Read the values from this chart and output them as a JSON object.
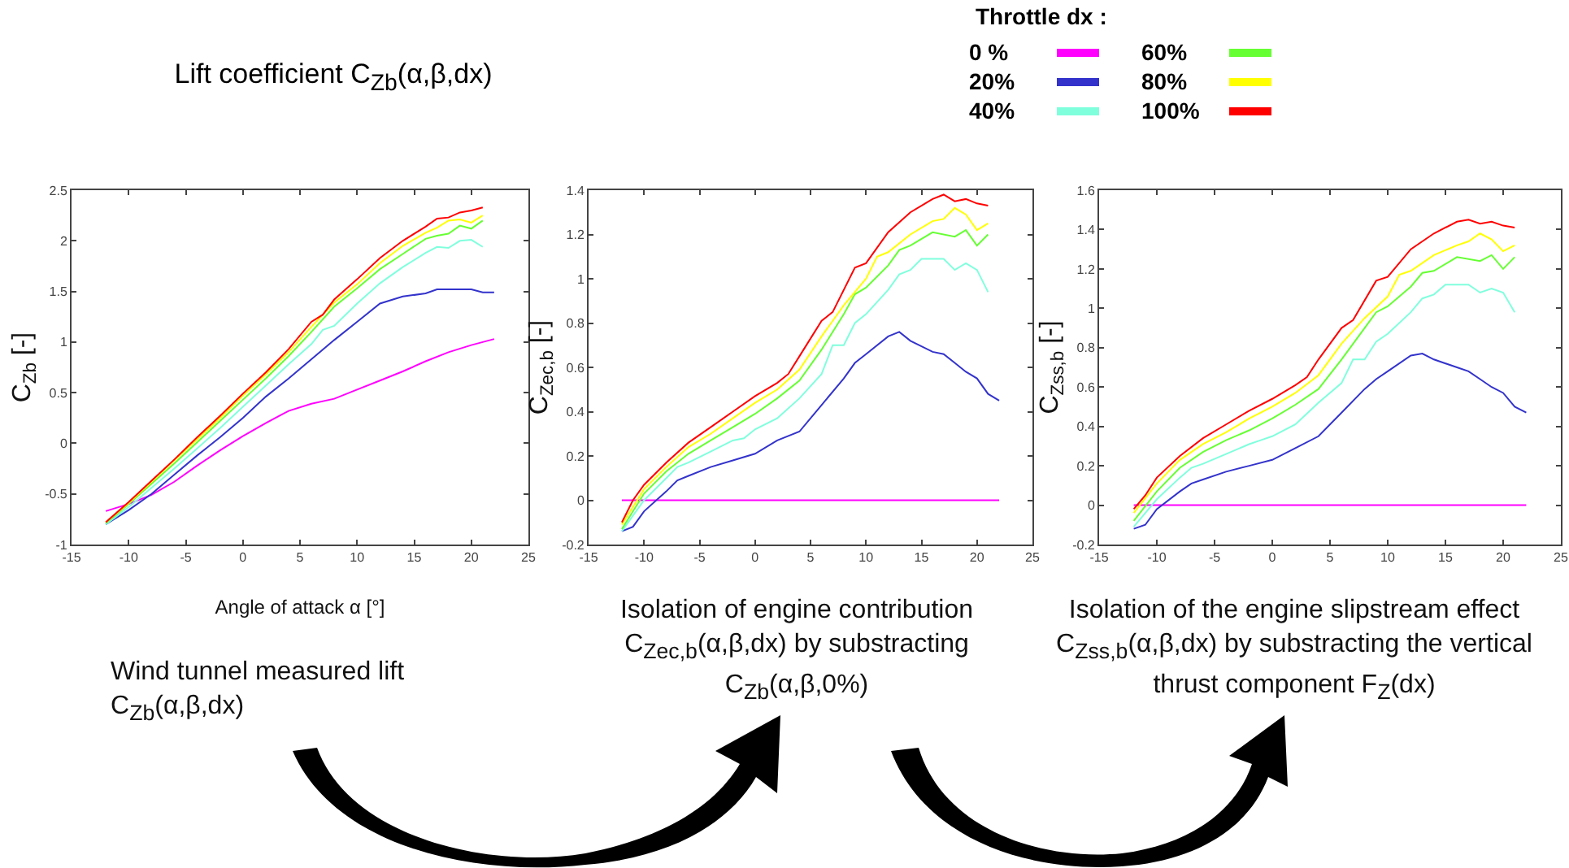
{
  "chart_data": [
    {
      "type": "line",
      "title": "Lift coefficient C$_{Zb}$(α,β,dx)",
      "xlabel": "Angle of attack α [°]",
      "ylabel": "C$_{Zb}$ [-]",
      "legend_title": "Throttle dx :",
      "legend": "top right",
      "xlim": [
        -15,
        25
      ],
      "xticks": [
        -15,
        -10,
        -5,
        0,
        5,
        10,
        15,
        20,
        25
      ],
      "ylim": [
        -1,
        2.5
      ],
      "yticks": [
        -1,
        -0.5,
        0,
        0.5,
        1,
        1.5,
        2,
        2.5
      ],
      "annotations": [
        "Wind tunnel measured lift C$_{Zb}$(α,β,dx)"
      ],
      "series": [
        {
          "name": "0 %",
          "color": "#ff00ff",
          "x": [
            -12,
            -10,
            -8,
            -6,
            -4,
            -2,
            0,
            2,
            4,
            6,
            8,
            10,
            12,
            14,
            16,
            18,
            20,
            22
          ],
          "values": [
            -0.67,
            -0.6,
            -0.51,
            -0.38,
            -0.22,
            -0.07,
            0.07,
            0.2,
            0.32,
            0.39,
            0.44,
            0.53,
            0.62,
            0.71,
            0.81,
            0.9,
            0.97,
            1.03
          ]
        },
        {
          "name": "20%",
          "color": "#3333cc",
          "x": [
            -12,
            -10,
            -8,
            -6,
            -4,
            -2,
            0,
            2,
            4,
            6,
            8,
            10,
            12,
            14,
            16,
            17,
            18,
            20,
            21,
            22
          ],
          "values": [
            -0.8,
            -0.66,
            -0.5,
            -0.31,
            -0.12,
            0.06,
            0.25,
            0.46,
            0.64,
            0.83,
            1.02,
            1.2,
            1.38,
            1.45,
            1.48,
            1.52,
            1.52,
            1.52,
            1.49,
            1.49
          ]
        },
        {
          "name": "40%",
          "color": "#80ffdd",
          "x": [
            -12,
            -10,
            -8,
            -6,
            -4,
            -2,
            0,
            2,
            4,
            6,
            7,
            8,
            10,
            12,
            14,
            16,
            17,
            18,
            19,
            20,
            21
          ],
          "values": [
            -0.8,
            -0.63,
            -0.44,
            -0.25,
            -0.05,
            0.15,
            0.36,
            0.57,
            0.78,
            0.98,
            1.12,
            1.16,
            1.38,
            1.58,
            1.74,
            1.88,
            1.94,
            1.93,
            2.0,
            2.01,
            1.94
          ]
        },
        {
          "name": "60%",
          "color": "#66ff33",
          "x": [
            -12,
            -10,
            -8,
            -6,
            -4,
            -2,
            0,
            2,
            4,
            6,
            8,
            10,
            12,
            14,
            16,
            17,
            18,
            19,
            20,
            21
          ],
          "values": [
            -0.79,
            -0.6,
            -0.4,
            -0.2,
            0.01,
            0.22,
            0.43,
            0.64,
            0.86,
            1.1,
            1.35,
            1.53,
            1.72,
            1.87,
            2.02,
            2.05,
            2.07,
            2.15,
            2.12,
            2.2
          ]
        },
        {
          "name": "80%",
          "color": "#ffff00",
          "x": [
            -12,
            -10,
            -8,
            -6,
            -4,
            -2,
            0,
            2,
            4,
            6,
            8,
            10,
            12,
            14,
            16,
            17,
            18,
            19,
            20,
            21
          ],
          "values": [
            -0.78,
            -0.59,
            -0.38,
            -0.17,
            0.04,
            0.25,
            0.47,
            0.68,
            0.9,
            1.15,
            1.39,
            1.57,
            1.78,
            1.95,
            2.08,
            2.13,
            2.2,
            2.21,
            2.18,
            2.25
          ]
        },
        {
          "name": "100%",
          "color": "#ff0000",
          "x": [
            -12,
            -10,
            -8,
            -6,
            -4,
            -2,
            0,
            2,
            4,
            6,
            7,
            8,
            10,
            12,
            14,
            16,
            17,
            18,
            19,
            20,
            21
          ],
          "values": [
            -0.78,
            -0.58,
            -0.37,
            -0.16,
            0.06,
            0.27,
            0.49,
            0.7,
            0.93,
            1.2,
            1.27,
            1.42,
            1.62,
            1.83,
            2.0,
            2.14,
            2.22,
            2.23,
            2.28,
            2.3,
            2.33
          ]
        }
      ]
    },
    {
      "type": "line",
      "ylabel": "C$_{Zec,b}$ [-]",
      "xlim": [
        -15,
        25
      ],
      "xticks": [
        -15,
        -10,
        -5,
        0,
        5,
        10,
        15,
        20,
        25
      ],
      "ylim": [
        -0.2,
        1.4
      ],
      "yticks": [
        -0.2,
        0,
        0.2,
        0.4,
        0.6,
        0.8,
        1,
        1.2,
        1.4
      ],
      "annotations": [
        "Isolation of engine contribution C$_{Zec,b}$(α,β,dx) by substracting C$_{Zb}$(α,β,0%)"
      ],
      "series": [
        {
          "color": "#ff00ff",
          "x": [
            -12,
            22
          ],
          "values": [
            0,
            0
          ]
        },
        {
          "color": "#3333cc",
          "x": [
            -12,
            -11,
            -10,
            -8,
            -7,
            -6,
            -4,
            -2,
            0,
            2,
            4,
            6,
            8,
            9,
            10,
            12,
            13,
            14,
            16,
            17,
            18,
            19,
            20,
            21,
            22
          ],
          "values": [
            -0.14,
            -0.12,
            -0.05,
            0.04,
            0.09,
            0.11,
            0.15,
            0.18,
            0.21,
            0.27,
            0.31,
            0.43,
            0.55,
            0.62,
            0.66,
            0.74,
            0.76,
            0.72,
            0.67,
            0.66,
            0.62,
            0.58,
            0.55,
            0.48,
            0.45
          ]
        },
        {
          "color": "#80ffdd",
          "x": [
            -12,
            -10,
            -8,
            -7,
            -6,
            -4,
            -2,
            -1,
            0,
            2,
            4,
            6,
            7,
            8,
            9,
            10,
            12,
            13,
            14,
            15,
            17,
            18,
            19,
            20,
            21
          ],
          "values": [
            -0.14,
            0.0,
            0.1,
            0.15,
            0.17,
            0.22,
            0.27,
            0.28,
            0.32,
            0.37,
            0.46,
            0.57,
            0.7,
            0.7,
            0.8,
            0.84,
            0.95,
            1.02,
            1.04,
            1.09,
            1.09,
            1.04,
            1.07,
            1.04,
            0.94
          ]
        },
        {
          "color": "#66ff33",
          "x": [
            -12,
            -10,
            -8,
            -6,
            -4,
            -2,
            0,
            2,
            4,
            6,
            8,
            9,
            10,
            12,
            13,
            14,
            16,
            18,
            19,
            20,
            21
          ],
          "values": [
            -0.13,
            0.03,
            0.13,
            0.21,
            0.27,
            0.33,
            0.39,
            0.46,
            0.54,
            0.68,
            0.84,
            0.93,
            0.96,
            1.06,
            1.13,
            1.15,
            1.21,
            1.19,
            1.22,
            1.15,
            1.2
          ]
        },
        {
          "color": "#ffff00",
          "x": [
            -12,
            -10,
            -8,
            -6,
            -4,
            -2,
            0,
            2,
            4,
            6,
            8,
            10,
            11,
            12,
            14,
            16,
            17,
            18,
            19,
            20,
            21
          ],
          "values": [
            -0.11,
            0.05,
            0.15,
            0.24,
            0.3,
            0.37,
            0.44,
            0.5,
            0.59,
            0.74,
            0.88,
            1.0,
            1.1,
            1.12,
            1.2,
            1.26,
            1.27,
            1.32,
            1.29,
            1.22,
            1.25
          ]
        },
        {
          "color": "#ff0000",
          "x": [
            -12,
            -11,
            -10,
            -8,
            -6,
            -4,
            -2,
            0,
            2,
            3,
            4,
            6,
            7,
            9,
            10,
            12,
            14,
            16,
            17,
            18,
            19,
            20,
            21
          ],
          "values": [
            -0.1,
            0.0,
            0.07,
            0.17,
            0.26,
            0.33,
            0.4,
            0.47,
            0.53,
            0.57,
            0.65,
            0.81,
            0.85,
            1.05,
            1.07,
            1.21,
            1.3,
            1.36,
            1.38,
            1.35,
            1.36,
            1.34,
            1.33
          ]
        }
      ]
    },
    {
      "type": "line",
      "ylabel": "C$_{Zss,b}$ [-]",
      "xlim": [
        -15,
        25
      ],
      "xticks": [
        -15,
        -10,
        -5,
        0,
        5,
        10,
        15,
        20,
        25
      ],
      "ylim": [
        -0.2,
        1.6
      ],
      "yticks": [
        -0.2,
        0,
        0.2,
        0.4,
        0.6,
        0.8,
        1,
        1.2,
        1.4,
        1.6
      ],
      "annotations": [
        "Isolation of the engine slipstream effect C$_{Zss,b}$(α,β,dx) by substracting the vertical thrust component F$_{Z}$(dx)"
      ],
      "series": [
        {
          "color": "#ff00ff",
          "x": [
            -12,
            22
          ],
          "values": [
            0,
            0
          ]
        },
        {
          "color": "#3333cc",
          "x": [
            -12,
            -11,
            -10,
            -8,
            -7,
            -6,
            -4,
            -2,
            0,
            2,
            4,
            6,
            8,
            9,
            10,
            12,
            13,
            14,
            16,
            17,
            18,
            19,
            20,
            21,
            22
          ],
          "values": [
            -0.12,
            -0.1,
            -0.02,
            0.07,
            0.11,
            0.13,
            0.17,
            0.2,
            0.23,
            0.29,
            0.35,
            0.47,
            0.59,
            0.64,
            0.68,
            0.76,
            0.77,
            0.74,
            0.7,
            0.68,
            0.64,
            0.6,
            0.57,
            0.5,
            0.47
          ]
        },
        {
          "color": "#80ffdd",
          "x": [
            -12,
            -10,
            -8,
            -7,
            -6,
            -4,
            -2,
            -1,
            0,
            2,
            4,
            6,
            7,
            8,
            9,
            10,
            12,
            13,
            14,
            15,
            17,
            18,
            19,
            20,
            21
          ],
          "values": [
            -0.11,
            0.03,
            0.14,
            0.19,
            0.21,
            0.26,
            0.31,
            0.33,
            0.35,
            0.41,
            0.52,
            0.62,
            0.74,
            0.74,
            0.83,
            0.87,
            0.98,
            1.05,
            1.07,
            1.12,
            1.12,
            1.08,
            1.1,
            1.08,
            0.98
          ]
        },
        {
          "color": "#66ff33",
          "x": [
            -12,
            -10,
            -8,
            -6,
            -4,
            -2,
            0,
            2,
            4,
            6,
            8,
            9,
            10,
            12,
            13,
            14,
            16,
            18,
            19,
            20,
            21
          ],
          "values": [
            -0.08,
            0.07,
            0.19,
            0.27,
            0.33,
            0.38,
            0.44,
            0.51,
            0.59,
            0.74,
            0.9,
            0.98,
            1.01,
            1.11,
            1.18,
            1.19,
            1.26,
            1.24,
            1.27,
            1.2,
            1.26
          ]
        },
        {
          "color": "#ffff00",
          "x": [
            -12,
            -10,
            -8,
            -6,
            -4,
            -2,
            0,
            2,
            4,
            6,
            8,
            10,
            11,
            12,
            14,
            16,
            17,
            18,
            19,
            20,
            21
          ],
          "values": [
            -0.04,
            0.11,
            0.23,
            0.31,
            0.37,
            0.44,
            0.5,
            0.57,
            0.66,
            0.82,
            0.95,
            1.06,
            1.17,
            1.19,
            1.27,
            1.32,
            1.34,
            1.38,
            1.35,
            1.29,
            1.32
          ]
        },
        {
          "color": "#ff0000",
          "x": [
            -12,
            -11,
            -10,
            -8,
            -6,
            -4,
            -2,
            0,
            2,
            3,
            4,
            6,
            7,
            9,
            10,
            12,
            14,
            16,
            17,
            18,
            19,
            20,
            21
          ],
          "values": [
            -0.02,
            0.05,
            0.14,
            0.25,
            0.34,
            0.41,
            0.48,
            0.54,
            0.61,
            0.65,
            0.74,
            0.9,
            0.94,
            1.14,
            1.16,
            1.3,
            1.38,
            1.44,
            1.45,
            1.43,
            1.44,
            1.42,
            1.41
          ]
        }
      ]
    }
  ]
}
